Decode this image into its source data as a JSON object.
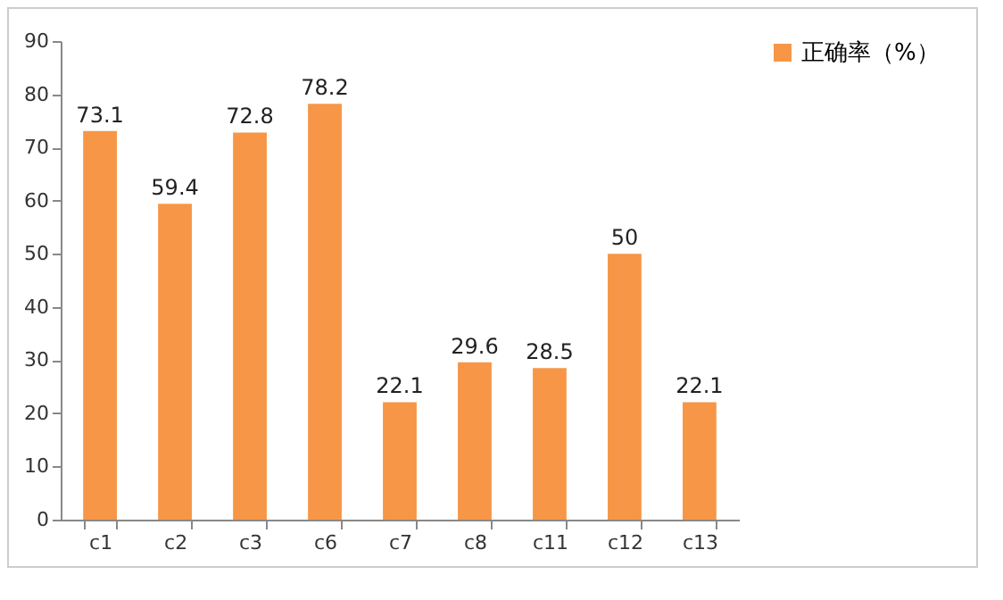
{
  "chart_data": {
    "type": "bar",
    "categories": [
      "c1",
      "c2",
      "c3",
      "c6",
      "c7",
      "c8",
      "c11",
      "c12",
      "c13"
    ],
    "series": [
      {
        "name": "正确率（%）",
        "color": "#f79646",
        "values": [
          73.1,
          59.4,
          72.8,
          78.2,
          22.1,
          29.6,
          28.5,
          50,
          22.1
        ]
      }
    ],
    "ylim": [
      0,
      90
    ],
    "yticks": [
      0,
      10,
      20,
      30,
      40,
      50,
      60,
      70,
      80,
      90
    ],
    "data_labels": true,
    "legend": "right",
    "grid": false
  }
}
